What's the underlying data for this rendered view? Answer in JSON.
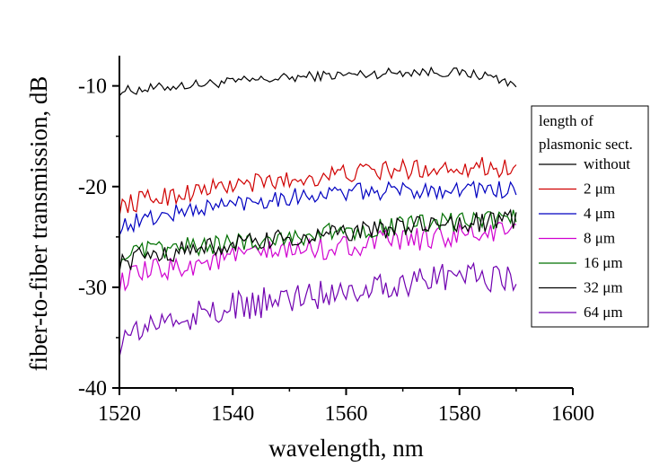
{
  "chart_data": {
    "type": "line",
    "title": "",
    "xlabel": "wavelength, nm",
    "ylabel": "fiber-to-fiber transmission, dB",
    "xlim": [
      1520,
      1600
    ],
    "ylim": [
      -40,
      -7
    ],
    "xticks": [
      1520,
      1540,
      1560,
      1580,
      1600
    ],
    "xtick_labels": [
      "1520",
      "1540",
      "1560",
      "1580",
      "1600"
    ],
    "yticks": [
      -40,
      -30,
      -20,
      -10
    ],
    "ytick_labels": [
      "-40",
      "-30",
      "-20",
      "-10"
    ],
    "grid": false,
    "legend": {
      "placement": "right",
      "title_lines": [
        "length of",
        "plasmonic sect."
      ]
    },
    "x": [
      1520,
      1525,
      1530,
      1535,
      1540,
      1545,
      1550,
      1555,
      1560,
      1565,
      1570,
      1575,
      1580,
      1585,
      1590
    ],
    "series": [
      {
        "name": "without",
        "color": "#000000",
        "values": [
          -10.5,
          -10.3,
          -10.0,
          -9.8,
          -9.6,
          -9.4,
          -9.2,
          -9.0,
          -8.9,
          -8.8,
          -8.6,
          -8.6,
          -8.7,
          -9.0,
          -9.8
        ]
      },
      {
        "name": "2 μm",
        "color": "#d00000",
        "values": [
          -22.0,
          -21.2,
          -20.8,
          -20.3,
          -19.9,
          -19.6,
          -19.4,
          -19.0,
          -18.7,
          -18.5,
          -18.3,
          -18.2,
          -18.0,
          -18.0,
          -18.3
        ]
      },
      {
        "name": "4 μm",
        "color": "#0000c0",
        "values": [
          -24.0,
          -23.2,
          -22.6,
          -22.1,
          -21.7,
          -21.3,
          -21.0,
          -20.8,
          -20.6,
          -20.5,
          -20.4,
          -20.3,
          -20.2,
          -20.3,
          -20.4
        ]
      },
      {
        "name": "8 μm",
        "color": "#d000d0",
        "values": [
          -29.5,
          -28.5,
          -28.0,
          -27.5,
          -27.0,
          -26.7,
          -26.4,
          -26.2,
          -25.9,
          -25.6,
          -25.3,
          -25.1,
          -24.9,
          -24.6,
          -24.5
        ]
      },
      {
        "name": "16 μm",
        "color": "#007000",
        "values": [
          -27.0,
          -26.4,
          -26.1,
          -25.9,
          -25.6,
          -25.3,
          -25.0,
          -24.7,
          -24.4,
          -24.1,
          -23.9,
          -23.7,
          -23.5,
          -23.3,
          -23.2
        ]
      },
      {
        "name": "32 μm",
        "color": "#000000",
        "values": [
          -27.6,
          -26.8,
          -26.4,
          -26.1,
          -25.8,
          -25.5,
          -25.2,
          -24.9,
          -24.6,
          -24.3,
          -24.0,
          -23.8,
          -23.6,
          -23.5,
          -23.3
        ]
      },
      {
        "name": "64 μm",
        "color": "#7000b0",
        "values": [
          -35.5,
          -33.8,
          -33.2,
          -32.6,
          -32.1,
          -31.6,
          -31.1,
          -30.6,
          -30.2,
          -29.8,
          -29.5,
          -29.2,
          -28.9,
          -28.8,
          -29.4
        ]
      }
    ]
  }
}
